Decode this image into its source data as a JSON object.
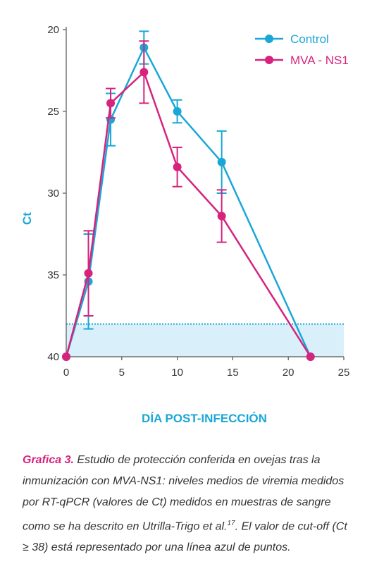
{
  "chart_data": {
    "type": "line",
    "xlabel": "DÍA POST-INFECCIÓN",
    "ylabel": "Ct",
    "xlim": [
      0,
      25
    ],
    "ylim": [
      20,
      40
    ],
    "y_inverted": true,
    "x_ticks": [
      "0",
      "5",
      "10",
      "15",
      "20",
      "25"
    ],
    "y_ticks": [
      "20",
      "25",
      "30",
      "35",
      "40"
    ],
    "legend_position": "top-right",
    "cutoff": 38,
    "series": [
      {
        "name": "Control",
        "color": "#1aa7d6",
        "x": [
          0,
          2,
          4,
          7,
          10,
          14,
          22
        ],
        "y": [
          40,
          35.4,
          25.5,
          21.1,
          25.0,
          28.1,
          40
        ],
        "err": [
          0,
          2.9,
          1.6,
          1.0,
          0.7,
          1.9,
          0
        ]
      },
      {
        "name": "MVA - NS1",
        "color": "#d6237e",
        "x": [
          0,
          2,
          4,
          7,
          10,
          14,
          22
        ],
        "y": [
          40,
          34.9,
          24.5,
          22.6,
          28.4,
          31.4,
          40
        ],
        "err": [
          0,
          2.6,
          0.9,
          1.9,
          1.2,
          1.6,
          0
        ]
      }
    ]
  },
  "caption": {
    "lead": "Grafica 3.",
    "text": " Estudio de protección conferida en ovejas tras la inmunización con MVA-NS1: niveles medios de viremia medidos por RT-qPCR (valores de Ct) medidos en muestras de sangre como se ha descrito en Utrilla-Trigo et al.",
    "ref": "17",
    "text2": ". El valor de cut-off (Ct ≥ 38) está representado por una línea azul de puntos."
  }
}
